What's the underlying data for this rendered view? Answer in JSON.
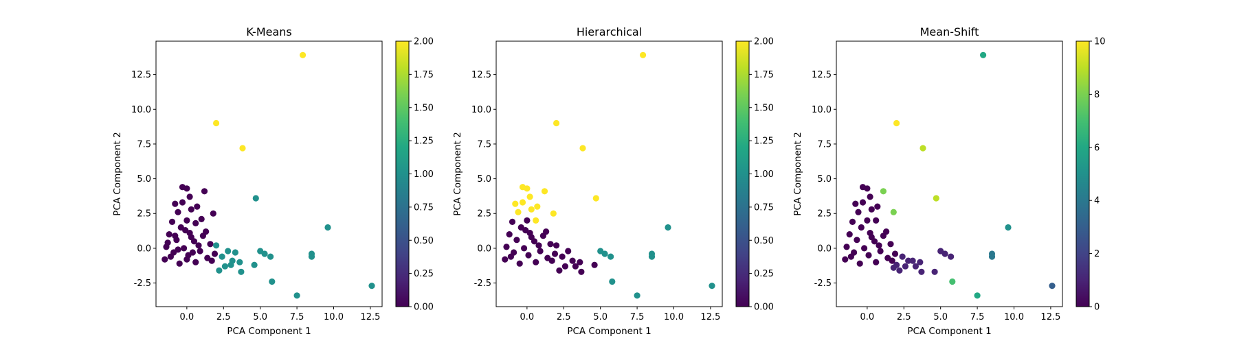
{
  "chart_data": [
    {
      "type": "scatter",
      "title": "K-Means",
      "xlabel": "PCA Component 1",
      "ylabel": "PCA Component 2",
      "xlim": [
        -2.1,
        13.3
      ],
      "ylim": [
        -4.2,
        14.9
      ],
      "xticks": [
        "0.0",
        "2.5",
        "5.0",
        "7.5",
        "10.0",
        "12.5"
      ],
      "xtick_values": [
        0,
        2.5,
        5,
        7.5,
        10,
        12.5
      ],
      "yticks": [
        "-2.5",
        "0.0",
        "2.5",
        "5.0",
        "7.5",
        "10.0",
        "12.5"
      ],
      "ytick_values": [
        -2.5,
        0,
        2.5,
        5,
        7.5,
        10,
        12.5
      ],
      "grid": false,
      "colorbar": {
        "min": 0,
        "max": 2,
        "ticks": [
          "0.00",
          "0.25",
          "0.50",
          "0.75",
          "1.00",
          "1.25",
          "1.50",
          "1.75",
          "2.00"
        ],
        "tick_values": [
          0,
          0.25,
          0.5,
          0.75,
          1,
          1.25,
          1.5,
          1.75,
          2
        ]
      },
      "points": [
        {
          "x": -0.3,
          "y": 4.4,
          "c": 0
        },
        {
          "x": 0.0,
          "y": 4.3,
          "c": 0
        },
        {
          "x": -0.8,
          "y": 3.2,
          "c": 0
        },
        {
          "x": 1.2,
          "y": 4.1,
          "c": 0
        },
        {
          "x": 0.2,
          "y": 3.7,
          "c": 0
        },
        {
          "x": -0.3,
          "y": 3.3,
          "c": 0
        },
        {
          "x": 0.7,
          "y": 3.0,
          "c": 0
        },
        {
          "x": 0.3,
          "y": 2.8,
          "c": 0
        },
        {
          "x": -0.6,
          "y": 2.6,
          "c": 0
        },
        {
          "x": 1.8,
          "y": 2.5,
          "c": 0
        },
        {
          "x": 1.0,
          "y": 2.1,
          "c": 0
        },
        {
          "x": -1.0,
          "y": 1.9,
          "c": 0
        },
        {
          "x": 0.0,
          "y": 2.0,
          "c": 0
        },
        {
          "x": 0.6,
          "y": 1.8,
          "c": 0
        },
        {
          "x": -0.4,
          "y": 1.5,
          "c": 0
        },
        {
          "x": 1.3,
          "y": 1.2,
          "c": 0
        },
        {
          "x": 0.2,
          "y": 1.1,
          "c": 0
        },
        {
          "x": -1.2,
          "y": 1.0,
          "c": 0
        },
        {
          "x": -0.7,
          "y": 0.6,
          "c": 0
        },
        {
          "x": 0.5,
          "y": 0.5,
          "c": 0
        },
        {
          "x": 1.6,
          "y": 0.3,
          "c": 0
        },
        {
          "x": -1.4,
          "y": 0.1,
          "c": 0
        },
        {
          "x": -0.2,
          "y": 0.0,
          "c": 0
        },
        {
          "x": 0.9,
          "y": -0.2,
          "c": 0
        },
        {
          "x": -0.9,
          "y": -0.3,
          "c": 0
        },
        {
          "x": 0.1,
          "y": -0.5,
          "c": 0
        },
        {
          "x": -1.5,
          "y": -0.8,
          "c": 0
        },
        {
          "x": 1.4,
          "y": -0.7,
          "c": 0
        },
        {
          "x": 0.6,
          "y": -1.0,
          "c": 0
        },
        {
          "x": -0.5,
          "y": -1.1,
          "c": 0
        },
        {
          "x": 1.9,
          "y": -0.4,
          "c": 0
        },
        {
          "x": -1.1,
          "y": -0.6,
          "c": 0
        },
        {
          "x": 0.3,
          "y": 0.8,
          "c": 0
        },
        {
          "x": -0.1,
          "y": 1.3,
          "c": 0
        },
        {
          "x": 1.1,
          "y": 0.9,
          "c": 0
        },
        {
          "x": -0.6,
          "y": -0.1,
          "c": 0
        },
        {
          "x": 0.4,
          "y": -0.3,
          "c": 0
        },
        {
          "x": -1.3,
          "y": 0.4,
          "c": 0
        },
        {
          "x": 0.8,
          "y": 0.2,
          "c": 0
        },
        {
          "x": 1.7,
          "y": -0.9,
          "c": 0
        },
        {
          "x": -0.8,
          "y": 0.9,
          "c": 0
        },
        {
          "x": 0.0,
          "y": -0.8,
          "c": 0
        },
        {
          "x": 2.4,
          "y": -0.6,
          "c": 1
        },
        {
          "x": 2.8,
          "y": -0.2,
          "c": 1
        },
        {
          "x": 3.1,
          "y": -0.9,
          "c": 1
        },
        {
          "x": 2.0,
          "y": 0.2,
          "c": 1
        },
        {
          "x": 3.3,
          "y": -0.3,
          "c": 1
        },
        {
          "x": 2.6,
          "y": -1.3,
          "c": 1
        },
        {
          "x": 3.6,
          "y": -1.0,
          "c": 1
        },
        {
          "x": 2.2,
          "y": -1.6,
          "c": 1
        },
        {
          "x": 3.7,
          "y": -1.7,
          "c": 1
        },
        {
          "x": 3.0,
          "y": -1.2,
          "c": 1
        },
        {
          "x": 4.6,
          "y": -1.2,
          "c": 1
        },
        {
          "x": 4.7,
          "y": 3.6,
          "c": 1
        },
        {
          "x": 5.0,
          "y": -0.2,
          "c": 1
        },
        {
          "x": 5.3,
          "y": -0.4,
          "c": 1
        },
        {
          "x": 5.7,
          "y": -0.6,
          "c": 1
        },
        {
          "x": 5.8,
          "y": -2.4,
          "c": 1
        },
        {
          "x": 7.5,
          "y": -3.4,
          "c": 1
        },
        {
          "x": 8.5,
          "y": -0.4,
          "c": 1
        },
        {
          "x": 8.5,
          "y": -0.6,
          "c": 1
        },
        {
          "x": 9.6,
          "y": 1.5,
          "c": 1
        },
        {
          "x": 12.6,
          "y": -2.7,
          "c": 1
        },
        {
          "x": 2.0,
          "y": 9.0,
          "c": 2
        },
        {
          "x": 3.8,
          "y": 7.2,
          "c": 2
        },
        {
          "x": 7.9,
          "y": 13.9,
          "c": 2
        }
      ]
    },
    {
      "type": "scatter",
      "title": "Hierarchical",
      "xlabel": "PCA Component 1",
      "ylabel": "PCA Component 2",
      "xlim": [
        -2.1,
        13.3
      ],
      "ylim": [
        -4.2,
        14.9
      ],
      "xticks": [
        "0.0",
        "2.5",
        "5.0",
        "7.5",
        "10.0",
        "12.5"
      ],
      "xtick_values": [
        0,
        2.5,
        5,
        7.5,
        10,
        12.5
      ],
      "yticks": [
        "-2.5",
        "0.0",
        "2.5",
        "5.0",
        "7.5",
        "10.0",
        "12.5"
      ],
      "ytick_values": [
        -2.5,
        0,
        2.5,
        5,
        7.5,
        10,
        12.5
      ],
      "grid": false,
      "colorbar": {
        "min": 0,
        "max": 2,
        "ticks": [
          "0.00",
          "0.25",
          "0.50",
          "0.75",
          "1.00",
          "1.25",
          "1.50",
          "1.75",
          "2.00"
        ],
        "tick_values": [
          0,
          0.25,
          0.5,
          0.75,
          1,
          1.25,
          1.5,
          1.75,
          2
        ]
      },
      "points": [
        {
          "x": -0.3,
          "y": 4.4,
          "c": 2
        },
        {
          "x": 0.0,
          "y": 4.3,
          "c": 2
        },
        {
          "x": -0.8,
          "y": 3.2,
          "c": 2
        },
        {
          "x": 1.2,
          "y": 4.1,
          "c": 2
        },
        {
          "x": 0.2,
          "y": 3.7,
          "c": 2
        },
        {
          "x": -0.3,
          "y": 3.3,
          "c": 2
        },
        {
          "x": 0.7,
          "y": 3.0,
          "c": 2
        },
        {
          "x": 0.3,
          "y": 2.8,
          "c": 2
        },
        {
          "x": -0.6,
          "y": 2.6,
          "c": 2
        },
        {
          "x": 1.8,
          "y": 2.5,
          "c": 2
        },
        {
          "x": 0.6,
          "y": 2.0,
          "c": 2
        },
        {
          "x": -1.0,
          "y": 1.9,
          "c": 0
        },
        {
          "x": 0.0,
          "y": 2.0,
          "c": 0
        },
        {
          "x": -0.4,
          "y": 1.5,
          "c": 0
        },
        {
          "x": 1.3,
          "y": 1.2,
          "c": 0
        },
        {
          "x": 0.2,
          "y": 1.1,
          "c": 0
        },
        {
          "x": -1.2,
          "y": 1.0,
          "c": 0
        },
        {
          "x": -0.7,
          "y": 0.6,
          "c": 0
        },
        {
          "x": 0.5,
          "y": 0.5,
          "c": 0
        },
        {
          "x": 1.6,
          "y": 0.3,
          "c": 0
        },
        {
          "x": -1.4,
          "y": 0.1,
          "c": 0
        },
        {
          "x": -0.2,
          "y": 0.0,
          "c": 0
        },
        {
          "x": 0.9,
          "y": -0.2,
          "c": 0
        },
        {
          "x": -0.9,
          "y": -0.3,
          "c": 0
        },
        {
          "x": 0.1,
          "y": -0.5,
          "c": 0
        },
        {
          "x": -1.5,
          "y": -0.8,
          "c": 0
        },
        {
          "x": 1.4,
          "y": -0.7,
          "c": 0
        },
        {
          "x": 0.6,
          "y": -1.0,
          "c": 0
        },
        {
          "x": -0.5,
          "y": -1.1,
          "c": 0
        },
        {
          "x": 1.9,
          "y": -0.4,
          "c": 0
        },
        {
          "x": -1.1,
          "y": -0.6,
          "c": 0
        },
        {
          "x": 0.3,
          "y": 0.8,
          "c": 0
        },
        {
          "x": -0.1,
          "y": 1.3,
          "c": 0
        },
        {
          "x": 1.1,
          "y": 0.9,
          "c": 0
        },
        {
          "x": 0.8,
          "y": 0.2,
          "c": 0
        },
        {
          "x": 1.7,
          "y": -0.9,
          "c": 0
        },
        {
          "x": 2.4,
          "y": -0.6,
          "c": 0
        },
        {
          "x": 2.8,
          "y": -0.2,
          "c": 0
        },
        {
          "x": 3.1,
          "y": -0.9,
          "c": 0
        },
        {
          "x": 2.0,
          "y": 0.2,
          "c": 0
        },
        {
          "x": 3.3,
          "y": -1.3,
          "c": 0
        },
        {
          "x": 2.6,
          "y": -1.3,
          "c": 0
        },
        {
          "x": 3.6,
          "y": -1.0,
          "c": 0
        },
        {
          "x": 2.2,
          "y": -1.6,
          "c": 0
        },
        {
          "x": 3.7,
          "y": -1.7,
          "c": 0
        },
        {
          "x": 4.6,
          "y": -1.2,
          "c": 0
        },
        {
          "x": 4.7,
          "y": 3.6,
          "c": 2
        },
        {
          "x": 5.0,
          "y": -0.2,
          "c": 1
        },
        {
          "x": 5.3,
          "y": -0.4,
          "c": 1
        },
        {
          "x": 5.7,
          "y": -0.6,
          "c": 1
        },
        {
          "x": 5.8,
          "y": -2.4,
          "c": 1
        },
        {
          "x": 7.5,
          "y": -3.4,
          "c": 1
        },
        {
          "x": 8.5,
          "y": -0.4,
          "c": 1
        },
        {
          "x": 8.5,
          "y": -0.6,
          "c": 1
        },
        {
          "x": 9.6,
          "y": 1.5,
          "c": 1
        },
        {
          "x": 12.6,
          "y": -2.7,
          "c": 1
        },
        {
          "x": 2.0,
          "y": 9.0,
          "c": 2
        },
        {
          "x": 3.8,
          "y": 7.2,
          "c": 2
        },
        {
          "x": 7.9,
          "y": 13.9,
          "c": 2
        }
      ]
    },
    {
      "type": "scatter",
      "title": "Mean-Shift",
      "xlabel": "PCA Component 1",
      "ylabel": "PCA Component 2",
      "xlim": [
        -2.1,
        13.3
      ],
      "ylim": [
        -4.2,
        14.9
      ],
      "xticks": [
        "0.0",
        "2.5",
        "5.0",
        "7.5",
        "10.0",
        "12.5"
      ],
      "xtick_values": [
        0,
        2.5,
        5,
        7.5,
        10,
        12.5
      ],
      "yticks": [
        "-2.5",
        "0.0",
        "2.5",
        "5.0",
        "7.5",
        "10.0",
        "12.5"
      ],
      "ytick_values": [
        -2.5,
        0,
        2.5,
        5,
        7.5,
        10,
        12.5
      ],
      "grid": false,
      "colorbar": {
        "min": 0,
        "max": 10,
        "ticks": [
          "0",
          "2",
          "4",
          "6",
          "8",
          "10"
        ],
        "tick_values": [
          0,
          2,
          4,
          6,
          8,
          10
        ]
      },
      "points": [
        {
          "x": -0.3,
          "y": 4.4,
          "c": 0
        },
        {
          "x": 0.0,
          "y": 4.3,
          "c": 0
        },
        {
          "x": -0.8,
          "y": 3.2,
          "c": 0
        },
        {
          "x": 0.2,
          "y": 3.7,
          "c": 0
        },
        {
          "x": -0.3,
          "y": 3.3,
          "c": 0
        },
        {
          "x": 0.7,
          "y": 3.0,
          "c": 0
        },
        {
          "x": 0.3,
          "y": 2.8,
          "c": 0
        },
        {
          "x": -0.6,
          "y": 2.6,
          "c": 0
        },
        {
          "x": 0.6,
          "y": 2.0,
          "c": 0
        },
        {
          "x": -1.0,
          "y": 1.9,
          "c": 0
        },
        {
          "x": 0.0,
          "y": 2.0,
          "c": 0
        },
        {
          "x": -0.4,
          "y": 1.5,
          "c": 0
        },
        {
          "x": 1.3,
          "y": 1.2,
          "c": 0
        },
        {
          "x": 0.2,
          "y": 1.1,
          "c": 0
        },
        {
          "x": -1.2,
          "y": 1.0,
          "c": 0
        },
        {
          "x": -0.7,
          "y": 0.6,
          "c": 0
        },
        {
          "x": 0.5,
          "y": 0.5,
          "c": 0
        },
        {
          "x": 1.6,
          "y": 0.3,
          "c": 0
        },
        {
          "x": -1.4,
          "y": 0.1,
          "c": 0
        },
        {
          "x": -0.2,
          "y": 0.0,
          "c": 0
        },
        {
          "x": 0.9,
          "y": -0.2,
          "c": 0
        },
        {
          "x": -0.9,
          "y": -0.3,
          "c": 0
        },
        {
          "x": 0.1,
          "y": -0.5,
          "c": 0
        },
        {
          "x": -1.5,
          "y": -0.8,
          "c": 0
        },
        {
          "x": 1.4,
          "y": -0.7,
          "c": 0
        },
        {
          "x": 0.6,
          "y": -1.0,
          "c": 0
        },
        {
          "x": -0.5,
          "y": -1.1,
          "c": 0
        },
        {
          "x": 1.9,
          "y": -0.4,
          "c": 0
        },
        {
          "x": -1.1,
          "y": -0.6,
          "c": 0
        },
        {
          "x": 0.3,
          "y": 0.8,
          "c": 0
        },
        {
          "x": 1.1,
          "y": 0.9,
          "c": 0
        },
        {
          "x": 0.8,
          "y": 0.2,
          "c": 0
        },
        {
          "x": 1.7,
          "y": -0.9,
          "c": 0
        },
        {
          "x": 2.4,
          "y": -0.6,
          "c": 1
        },
        {
          "x": 2.8,
          "y": -0.9,
          "c": 1
        },
        {
          "x": 3.1,
          "y": -0.9,
          "c": 1
        },
        {
          "x": 2.0,
          "y": -1.2,
          "c": 1
        },
        {
          "x": 3.3,
          "y": -1.3,
          "c": 1
        },
        {
          "x": 2.6,
          "y": -1.3,
          "c": 1
        },
        {
          "x": 3.6,
          "y": -1.0,
          "c": 1
        },
        {
          "x": 2.2,
          "y": -1.6,
          "c": 1
        },
        {
          "x": 3.7,
          "y": -1.7,
          "c": 1
        },
        {
          "x": 4.6,
          "y": -1.7,
          "c": 1
        },
        {
          "x": 5.0,
          "y": -0.2,
          "c": 1
        },
        {
          "x": 5.3,
          "y": -0.4,
          "c": 1
        },
        {
          "x": 5.7,
          "y": -0.6,
          "c": 1
        },
        {
          "x": 1.8,
          "y": -1.4,
          "c": 1
        },
        {
          "x": 12.6,
          "y": -2.7,
          "c": 3
        },
        {
          "x": 8.5,
          "y": -0.4,
          "c": 4
        },
        {
          "x": 8.5,
          "y": -0.6,
          "c": 4
        },
        {
          "x": 9.6,
          "y": 1.5,
          "c": 5
        },
        {
          "x": 7.9,
          "y": 13.9,
          "c": 6
        },
        {
          "x": 7.5,
          "y": -3.4,
          "c": 6
        },
        {
          "x": 5.8,
          "y": -2.4,
          "c": 7
        },
        {
          "x": 1.8,
          "y": 2.6,
          "c": 8
        },
        {
          "x": 1.1,
          "y": 4.1,
          "c": 8
        },
        {
          "x": 4.7,
          "y": 3.6,
          "c": 9
        },
        {
          "x": 3.8,
          "y": 7.2,
          "c": 9
        },
        {
          "x": 2.0,
          "y": 9.0,
          "c": 10
        }
      ]
    }
  ]
}
